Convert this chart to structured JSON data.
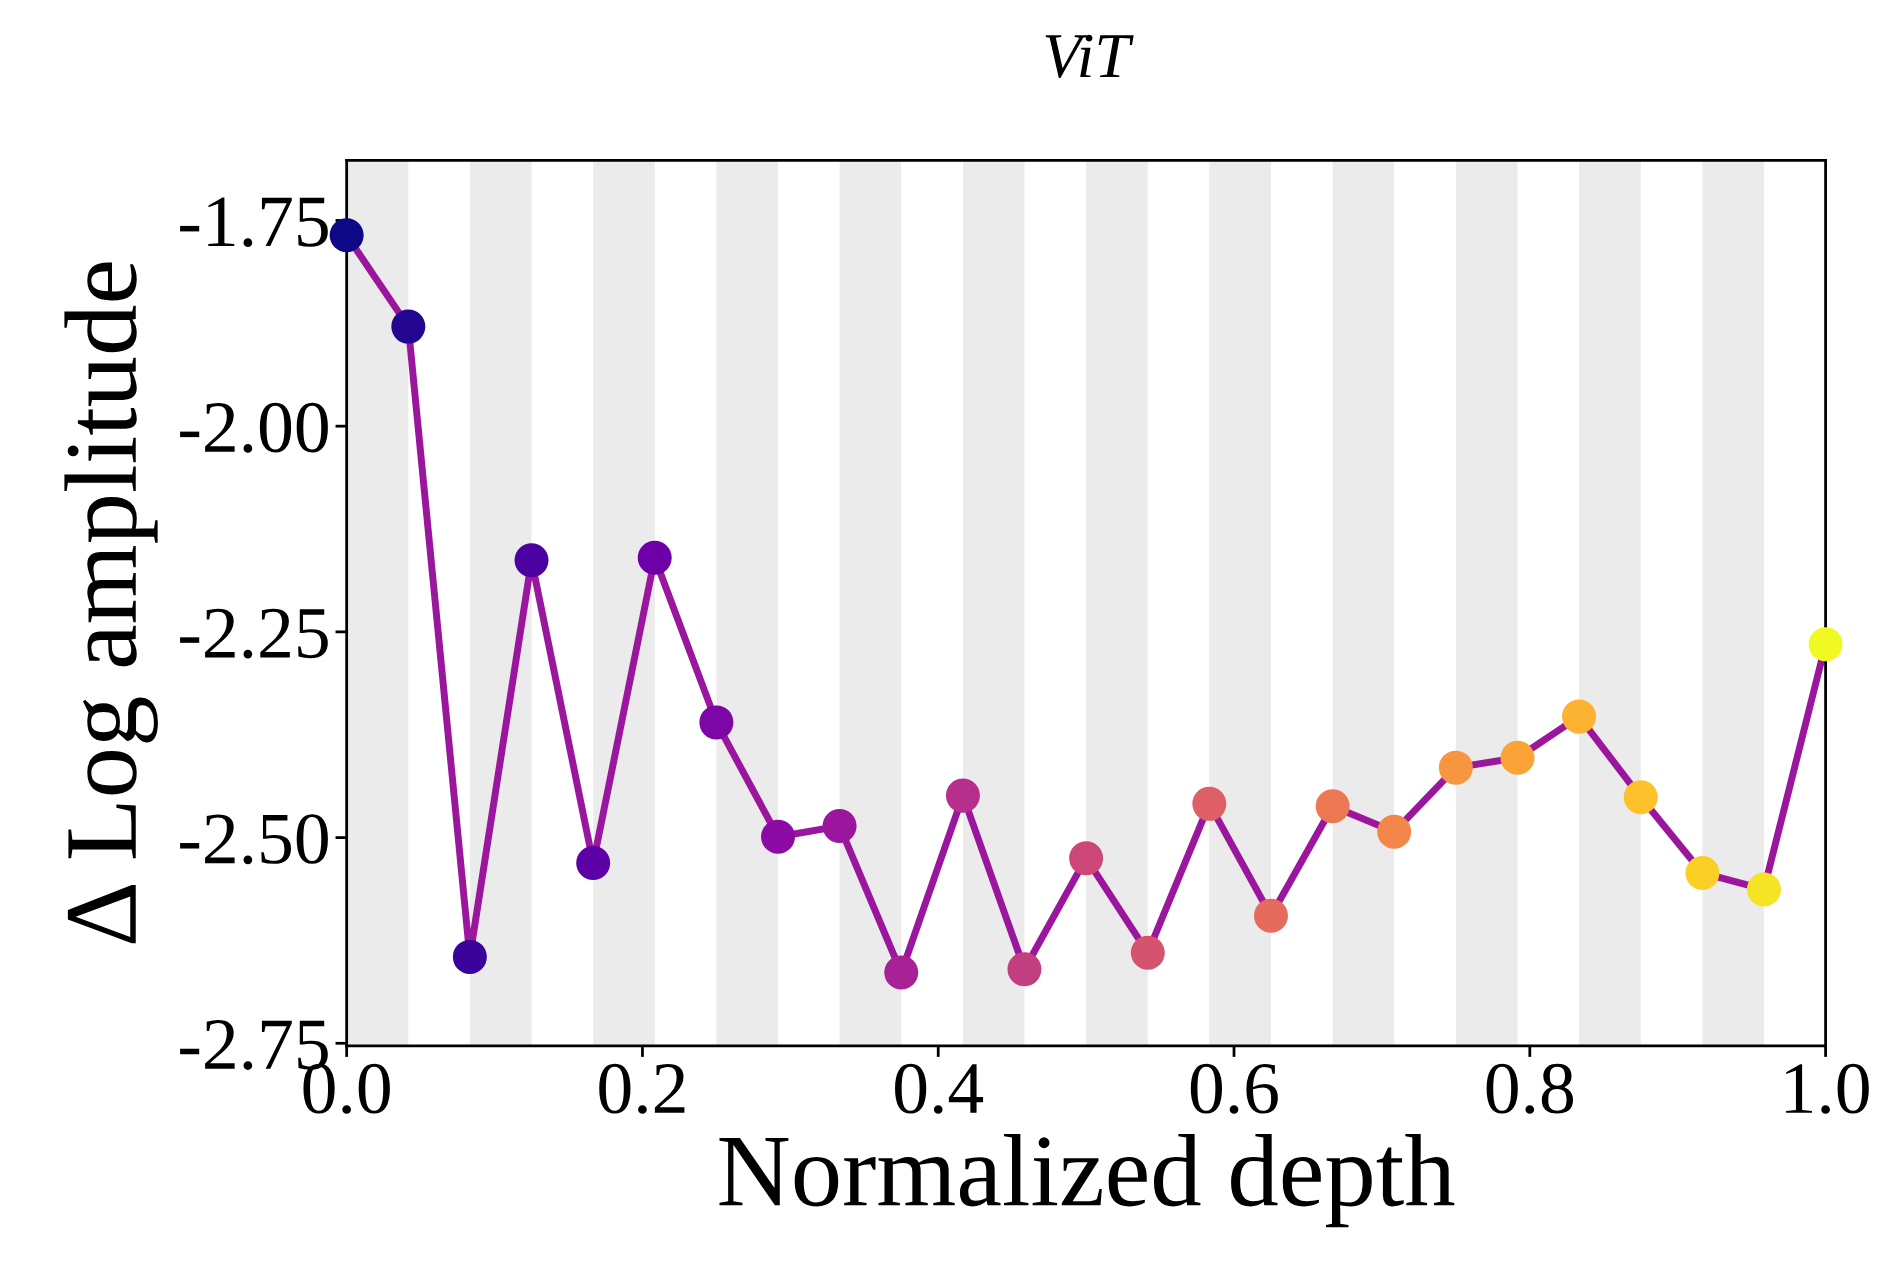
{
  "chart_data": {
    "type": "line",
    "title": "ViT",
    "xlabel": "Normalized depth",
    "ylabel": "Δ Log amplitude",
    "x": [
      0,
      0.0417,
      0.0833,
      0.125,
      0.1667,
      0.2083,
      0.25,
      0.2917,
      0.3333,
      0.375,
      0.4167,
      0.4583,
      0.5,
      0.5417,
      0.5833,
      0.625,
      0.6667,
      0.7083,
      0.75,
      0.7917,
      0.8333,
      0.875,
      0.9167,
      0.9583,
      1.0
    ],
    "series": [
      {
        "color": "#9a179d",
        "values": [
          -1.768,
          -1.879,
          -2.645,
          -2.163,
          -2.531,
          -2.16,
          -2.36,
          -2.499,
          -2.486,
          -2.664,
          -2.449,
          -2.66,
          -2.525,
          -2.64,
          -2.459,
          -2.595,
          -2.462,
          -2.493,
          -2.415,
          -2.403,
          -2.353,
          -2.451,
          -2.543,
          -2.563,
          -2.265
        ],
        "colors": [
          "#0d0887",
          "#230690",
          "#3a049a",
          "#4c02a1",
          "#5c01a6",
          "#6e00a8",
          "#7c06a6",
          "#8d0ba5",
          "#9a179d",
          "#a82296",
          "#b62f8c",
          "#c13e81",
          "#cc4778",
          "#d5536f",
          "#de5f65",
          "#e56b5d",
          "#ec7853",
          "#f3874a",
          "#f89540",
          "#fca338",
          "#fcb332",
          "#fcc12b",
          "#facf26",
          "#f5e423",
          "#f0f921"
        ]
      }
    ],
    "xlim": [
      0,
      1
    ],
    "xticks": [
      {
        "value": 0,
        "label": "0.0"
      },
      0.2,
      0.4,
      0.6,
      0.8,
      {
        "value": 1,
        "label": "1.0"
      }
    ],
    "ylim": [
      -2.753,
      -1.677
    ],
    "yticks": [
      {
        "value": -2.75,
        "label": "-2.75"
      },
      {
        "value": -2.5,
        "label": "-2.50"
      },
      {
        "value": -2.25,
        "label": "-2.25"
      },
      {
        "value": -2.0,
        "label": "-2.00"
      },
      {
        "value": -1.75,
        "label": "-1.75"
      }
    ],
    "bands": [
      {
        "axis": "x",
        "from": 0,
        "to": 0.0417,
        "color": "#ebebeb"
      },
      {
        "axis": "x",
        "from": 0.0833,
        "to": 0.125,
        "color": "#ebebeb"
      },
      {
        "axis": "x",
        "from": 0.1667,
        "to": 0.2083,
        "color": "#ebebeb"
      },
      {
        "axis": "x",
        "from": 0.25,
        "to": 0.2917,
        "color": "#ebebeb"
      },
      {
        "axis": "x",
        "from": 0.3333,
        "to": 0.375,
        "color": "#ebebeb"
      },
      {
        "axis": "x",
        "from": 0.4167,
        "to": 0.4583,
        "color": "#ebebeb"
      },
      {
        "axis": "x",
        "from": 0.5,
        "to": 0.5417,
        "color": "#ebebeb"
      },
      {
        "axis": "x",
        "from": 0.5833,
        "to": 0.625,
        "color": "#ebebeb"
      },
      {
        "axis": "x",
        "from": 0.6667,
        "to": 0.7083,
        "color": "#ebebeb"
      },
      {
        "axis": "x",
        "from": 0.75,
        "to": 0.7917,
        "color": "#ebebeb"
      },
      {
        "axis": "x",
        "from": 0.8333,
        "to": 0.875,
        "color": "#ebebeb"
      },
      {
        "axis": "x",
        "from": 0.9167,
        "to": 0.9583,
        "color": "#ebebeb"
      }
    ],
    "marker": "circle",
    "line_style": "solid",
    "grid": false,
    "legend": false
  }
}
